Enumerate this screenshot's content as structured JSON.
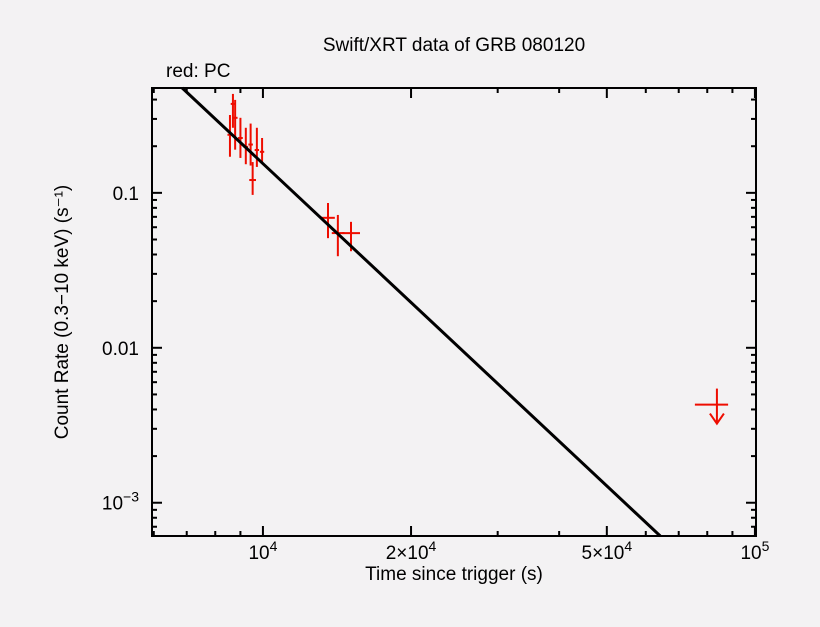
{
  "page": {
    "background": "#f3f2f3"
  },
  "chart": {
    "title": "Swift/XRT data of GRB 080120",
    "legend_note": "red: PC",
    "xlabel": "Time since trigger (s)",
    "ylabel": "Count Rate (0.3−10 keV) (s⁻¹)"
  },
  "chart_data": {
    "type": "scatter",
    "title": "Swift/XRT data of GRB 080120",
    "xlabel": "Time since trigger (s)",
    "ylabel": "Count Rate (0.3−10 keV) (s⁻¹)",
    "x_scale": "log",
    "y_scale": "log",
    "x_range": [
      5950,
      100500
    ],
    "y_range": [
      0.00061,
      0.475
    ],
    "grid": false,
    "legend_position": "top-left-outside",
    "colors": {
      "pc_mode": "#ee0d00",
      "fit_line": "#000000",
      "axis": "#000000"
    },
    "x_axis": {
      "major_ticks": [
        {
          "value": 10000,
          "label": "10^4"
        },
        {
          "value": 20000,
          "label": "2×10^4"
        },
        {
          "value": 50000,
          "label": "5×10^4"
        },
        {
          "value": 100000,
          "label": "10^5"
        }
      ],
      "minor_ticks": [
        6000,
        7000,
        8000,
        9000,
        30000,
        40000,
        60000,
        70000,
        80000,
        90000
      ]
    },
    "y_axis": {
      "major_ticks": [
        {
          "value": 0.1,
          "label": "0.1"
        },
        {
          "value": 0.01,
          "label": "0.01"
        },
        {
          "value": 0.001,
          "label": "10^−3"
        }
      ],
      "minor_ticks": [
        0.4,
        0.3,
        0.2,
        0.09,
        0.08,
        0.07,
        0.06,
        0.05,
        0.04,
        0.03,
        0.02,
        0.009,
        0.008,
        0.007,
        0.006,
        0.005,
        0.004,
        0.003,
        0.002,
        0.0009,
        0.0008,
        0.0007
      ]
    },
    "series": [
      {
        "name": "PC",
        "color": "#ee0d00",
        "points": [
          {
            "t": 8570,
            "t_err_lo": 8470,
            "t_err_hi": 8670,
            "rate": 0.237,
            "rate_err_lo": 0.171,
            "rate_err_hi": 0.318
          },
          {
            "t": 8690,
            "t_err_lo": 8600,
            "t_err_hi": 8780,
            "rate": 0.375,
            "rate_err_lo": 0.263,
            "rate_err_hi": 0.435
          },
          {
            "t": 8780,
            "t_err_lo": 8690,
            "t_err_hi": 8880,
            "rate": 0.305,
            "rate_err_lo": 0.19,
            "rate_err_hi": 0.398
          },
          {
            "t": 9000,
            "t_err_lo": 8900,
            "t_err_hi": 9100,
            "rate": 0.226,
            "rate_err_lo": 0.168,
            "rate_err_hi": 0.305
          },
          {
            "t": 9230,
            "t_err_lo": 9130,
            "t_err_hi": 9330,
            "rate": 0.198,
            "rate_err_lo": 0.153,
            "rate_err_hi": 0.263
          },
          {
            "t": 9440,
            "t_err_lo": 9340,
            "t_err_hi": 9540,
            "rate": 0.205,
            "rate_err_lo": 0.15,
            "rate_err_hi": 0.28
          },
          {
            "t": 9720,
            "t_err_lo": 9620,
            "t_err_hi": 9820,
            "rate": 0.189,
            "rate_err_lo": 0.147,
            "rate_err_hi": 0.263
          },
          {
            "t": 9960,
            "t_err_lo": 9860,
            "t_err_hi": 10060,
            "rate": 0.184,
            "rate_err_lo": 0.158,
            "rate_err_hi": 0.226
          },
          {
            "t": 9530,
            "t_err_lo": 9380,
            "t_err_hi": 9680,
            "rate": 0.121,
            "rate_err_lo": 0.097,
            "rate_err_hi": 0.158
          },
          {
            "t": 13560,
            "t_err_lo": 13100,
            "t_err_hi": 14000,
            "rate": 0.069,
            "rate_err_lo": 0.051,
            "rate_err_hi": 0.086
          },
          {
            "t": 14200,
            "t_err_lo": 13800,
            "t_err_hi": 14650,
            "rate": 0.055,
            "rate_err_lo": 0.039,
            "rate_err_hi": 0.072
          },
          {
            "t": 15100,
            "t_err_lo": 14500,
            "t_err_hi": 15750,
            "rate": 0.055,
            "rate_err_lo": 0.042,
            "rate_err_hi": 0.065
          }
        ]
      }
    ],
    "upper_limits": [
      {
        "t": 83700,
        "t_err_lo": 75500,
        "t_err_hi": 88200,
        "rate": 0.0043
      }
    ],
    "fit_line": {
      "t": [
        6850,
        64200
      ],
      "rate": [
        0.476,
        0.00061
      ]
    }
  }
}
